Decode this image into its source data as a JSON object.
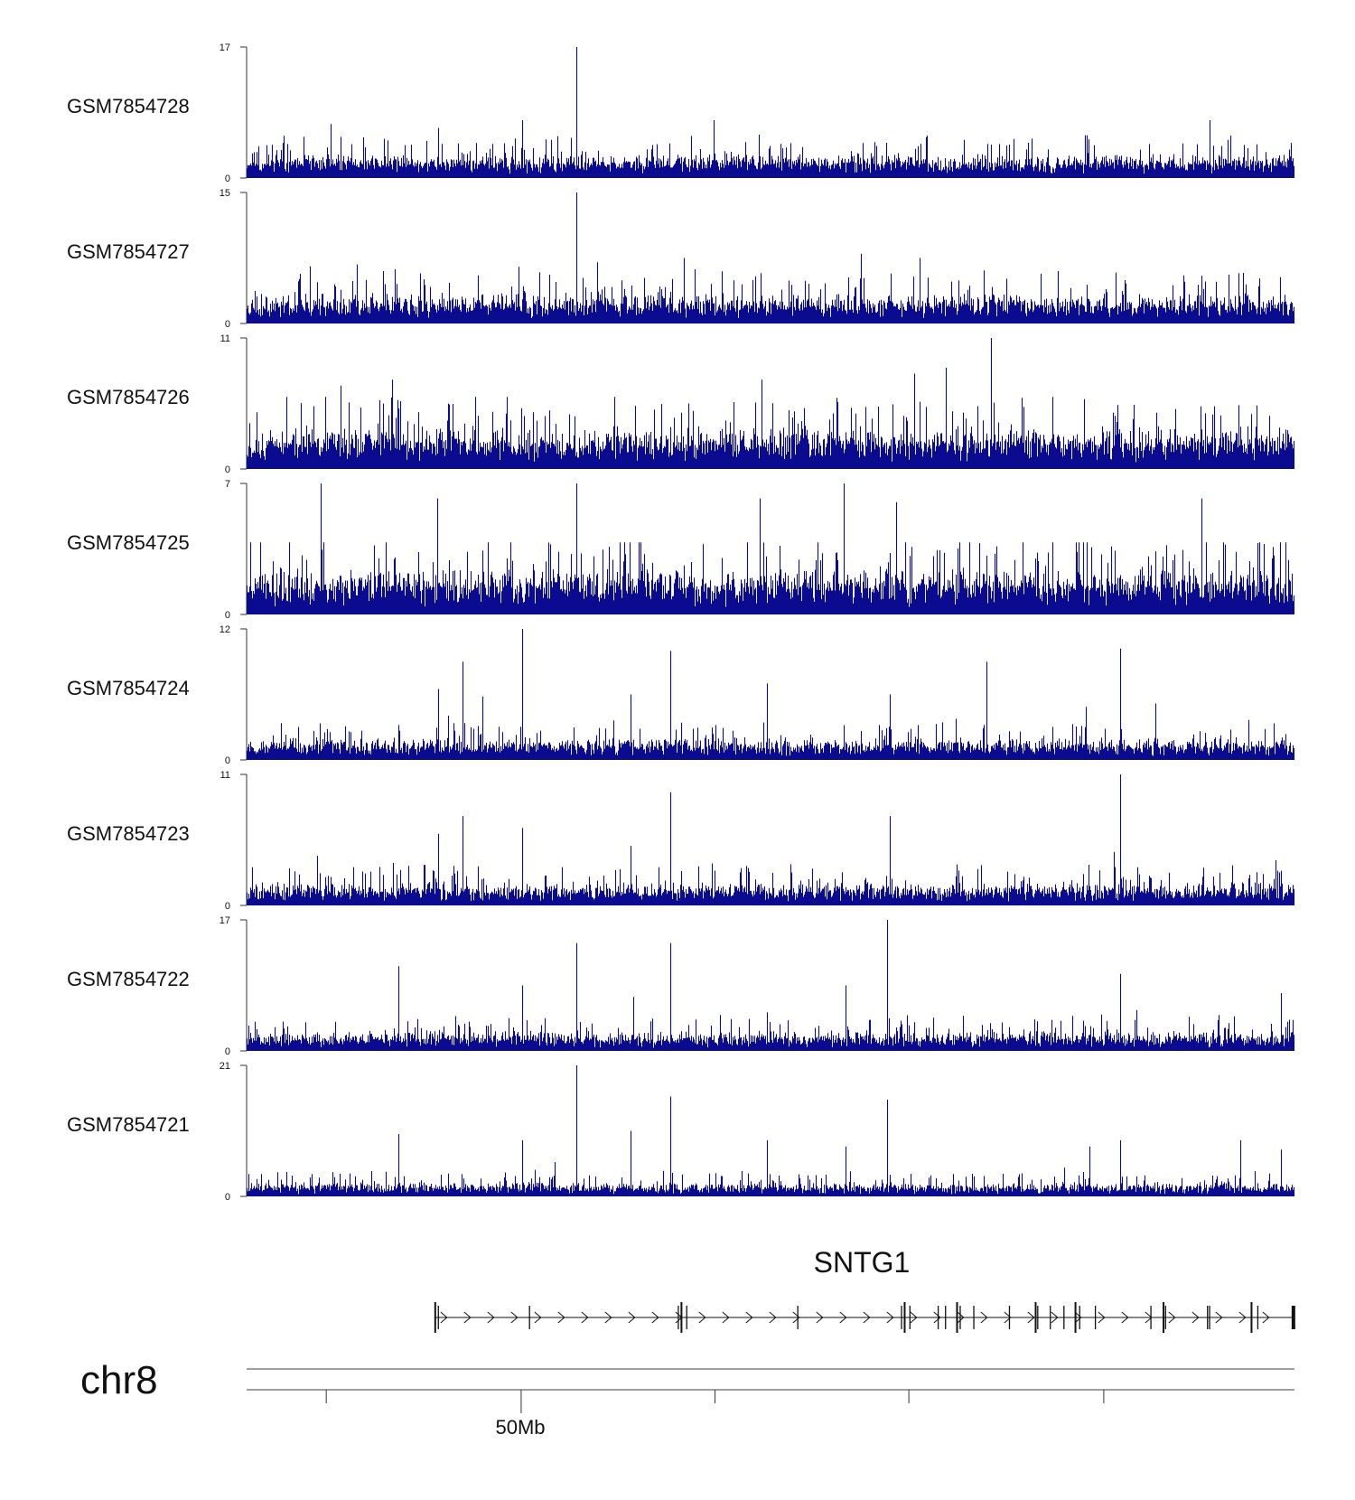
{
  "chart_data": {
    "type": "genome-browser-bar-tracks",
    "chromosome": "chr8",
    "bar_color": "#0b0b8f",
    "axis_tick_label": "50Mb",
    "gene": {
      "name": "SNTG1",
      "strand": "+",
      "region_start": 0.18,
      "region_end": 1.0,
      "exon_positions": [
        0.18,
        0.183,
        0.27,
        0.412,
        0.415,
        0.42,
        0.526,
        0.625,
        0.628,
        0.633,
        0.66,
        0.667,
        0.678,
        0.681,
        0.694,
        0.728,
        0.753,
        0.755,
        0.767,
        0.78,
        0.791,
        0.795,
        0.81,
        0.863,
        0.875,
        0.877,
        0.917,
        0.919,
        0.959,
        0.965,
        0.999
      ]
    },
    "tracks": [
      {
        "name": "GSM7854728",
        "ymin": 0,
        "ymax": 17,
        "baseline": 2,
        "noise": 1.2,
        "seed": 11,
        "peaks": [
          [
            0.315,
            17
          ],
          [
            0.263,
            7.5
          ],
          [
            0.446,
            7.5
          ],
          [
            0.92,
            7.5
          ],
          [
            0.183,
            6.5
          ],
          [
            0.08,
            7
          ],
          [
            0.94,
            5.5
          ],
          [
            0.65,
            5.5
          ]
        ]
      },
      {
        "name": "GSM7854727",
        "ymin": 0,
        "ymax": 15,
        "baseline": 2.2,
        "noise": 1.3,
        "seed": 23,
        "peaks": [
          [
            0.315,
            15
          ],
          [
            0.587,
            8
          ],
          [
            0.643,
            7.5
          ],
          [
            0.418,
            7.5
          ],
          [
            0.335,
            7
          ],
          [
            0.26,
            6.5
          ],
          [
            0.13,
            6
          ]
        ]
      },
      {
        "name": "GSM7854726",
        "ymin": 0,
        "ymax": 11,
        "baseline": 2.2,
        "noise": 1.4,
        "seed": 37,
        "peaks": [
          [
            0.711,
            11
          ],
          [
            0.668,
            8.5
          ],
          [
            0.638,
            8
          ],
          [
            0.492,
            7.5
          ],
          [
            0.139,
            7.5
          ],
          [
            0.09,
            7
          ]
        ]
      },
      {
        "name": "GSM7854725",
        "ymin": 0,
        "ymax": 7,
        "baseline": 1.5,
        "noise": 1.0,
        "seed": 41,
        "peaks": [
          [
            0.071,
            7
          ],
          [
            0.315,
            7
          ],
          [
            0.57,
            7
          ],
          [
            0.182,
            6.2
          ],
          [
            0.912,
            6.2
          ],
          [
            0.49,
            6.2
          ],
          [
            0.62,
            6
          ]
        ]
      },
      {
        "name": "GSM7854724",
        "ymin": 0,
        "ymax": 12,
        "baseline": 1.3,
        "noise": 0.8,
        "seed": 53,
        "peaks": [
          [
            0.263,
            12
          ],
          [
            0.834,
            10.2
          ],
          [
            0.405,
            10
          ],
          [
            0.707,
            9
          ],
          [
            0.206,
            9
          ],
          [
            0.497,
            7
          ],
          [
            0.183,
            6.5
          ],
          [
            0.614,
            6
          ],
          [
            0.225,
            5.8
          ],
          [
            0.367,
            6
          ]
        ]
      },
      {
        "name": "GSM7854723",
        "ymin": 0,
        "ymax": 11,
        "baseline": 1.2,
        "noise": 0.8,
        "seed": 67,
        "peaks": [
          [
            0.834,
            11
          ],
          [
            0.405,
            9.5
          ],
          [
            0.206,
            7.5
          ],
          [
            0.614,
            7.5
          ],
          [
            0.263,
            6.5
          ],
          [
            0.183,
            6
          ],
          [
            0.828,
            4.5
          ],
          [
            0.367,
            5
          ]
        ]
      },
      {
        "name": "GSM7854722",
        "ymin": 0,
        "ymax": 17,
        "baseline": 1.6,
        "noise": 1.0,
        "seed": 79,
        "peaks": [
          [
            0.612,
            17
          ],
          [
            0.315,
            14
          ],
          [
            0.405,
            14
          ],
          [
            0.145,
            11
          ],
          [
            0.834,
            10
          ],
          [
            0.263,
            8.5
          ],
          [
            0.572,
            8.5
          ],
          [
            0.369,
            7
          ],
          [
            0.988,
            7.5
          ],
          [
            0.497,
            5
          ]
        ]
      },
      {
        "name": "GSM7854721",
        "ymin": 0,
        "ymax": 21,
        "baseline": 1.4,
        "noise": 0.9,
        "seed": 97,
        "peaks": [
          [
            0.315,
            21
          ],
          [
            0.405,
            16
          ],
          [
            0.612,
            15.5
          ],
          [
            0.145,
            10
          ],
          [
            0.367,
            10.5
          ],
          [
            0.263,
            9
          ],
          [
            0.834,
            9
          ],
          [
            0.949,
            9
          ],
          [
            0.497,
            9
          ],
          [
            0.572,
            8
          ],
          [
            0.805,
            8
          ],
          [
            0.988,
            7.5
          ],
          [
            0.294,
            5.5
          ]
        ]
      }
    ]
  }
}
